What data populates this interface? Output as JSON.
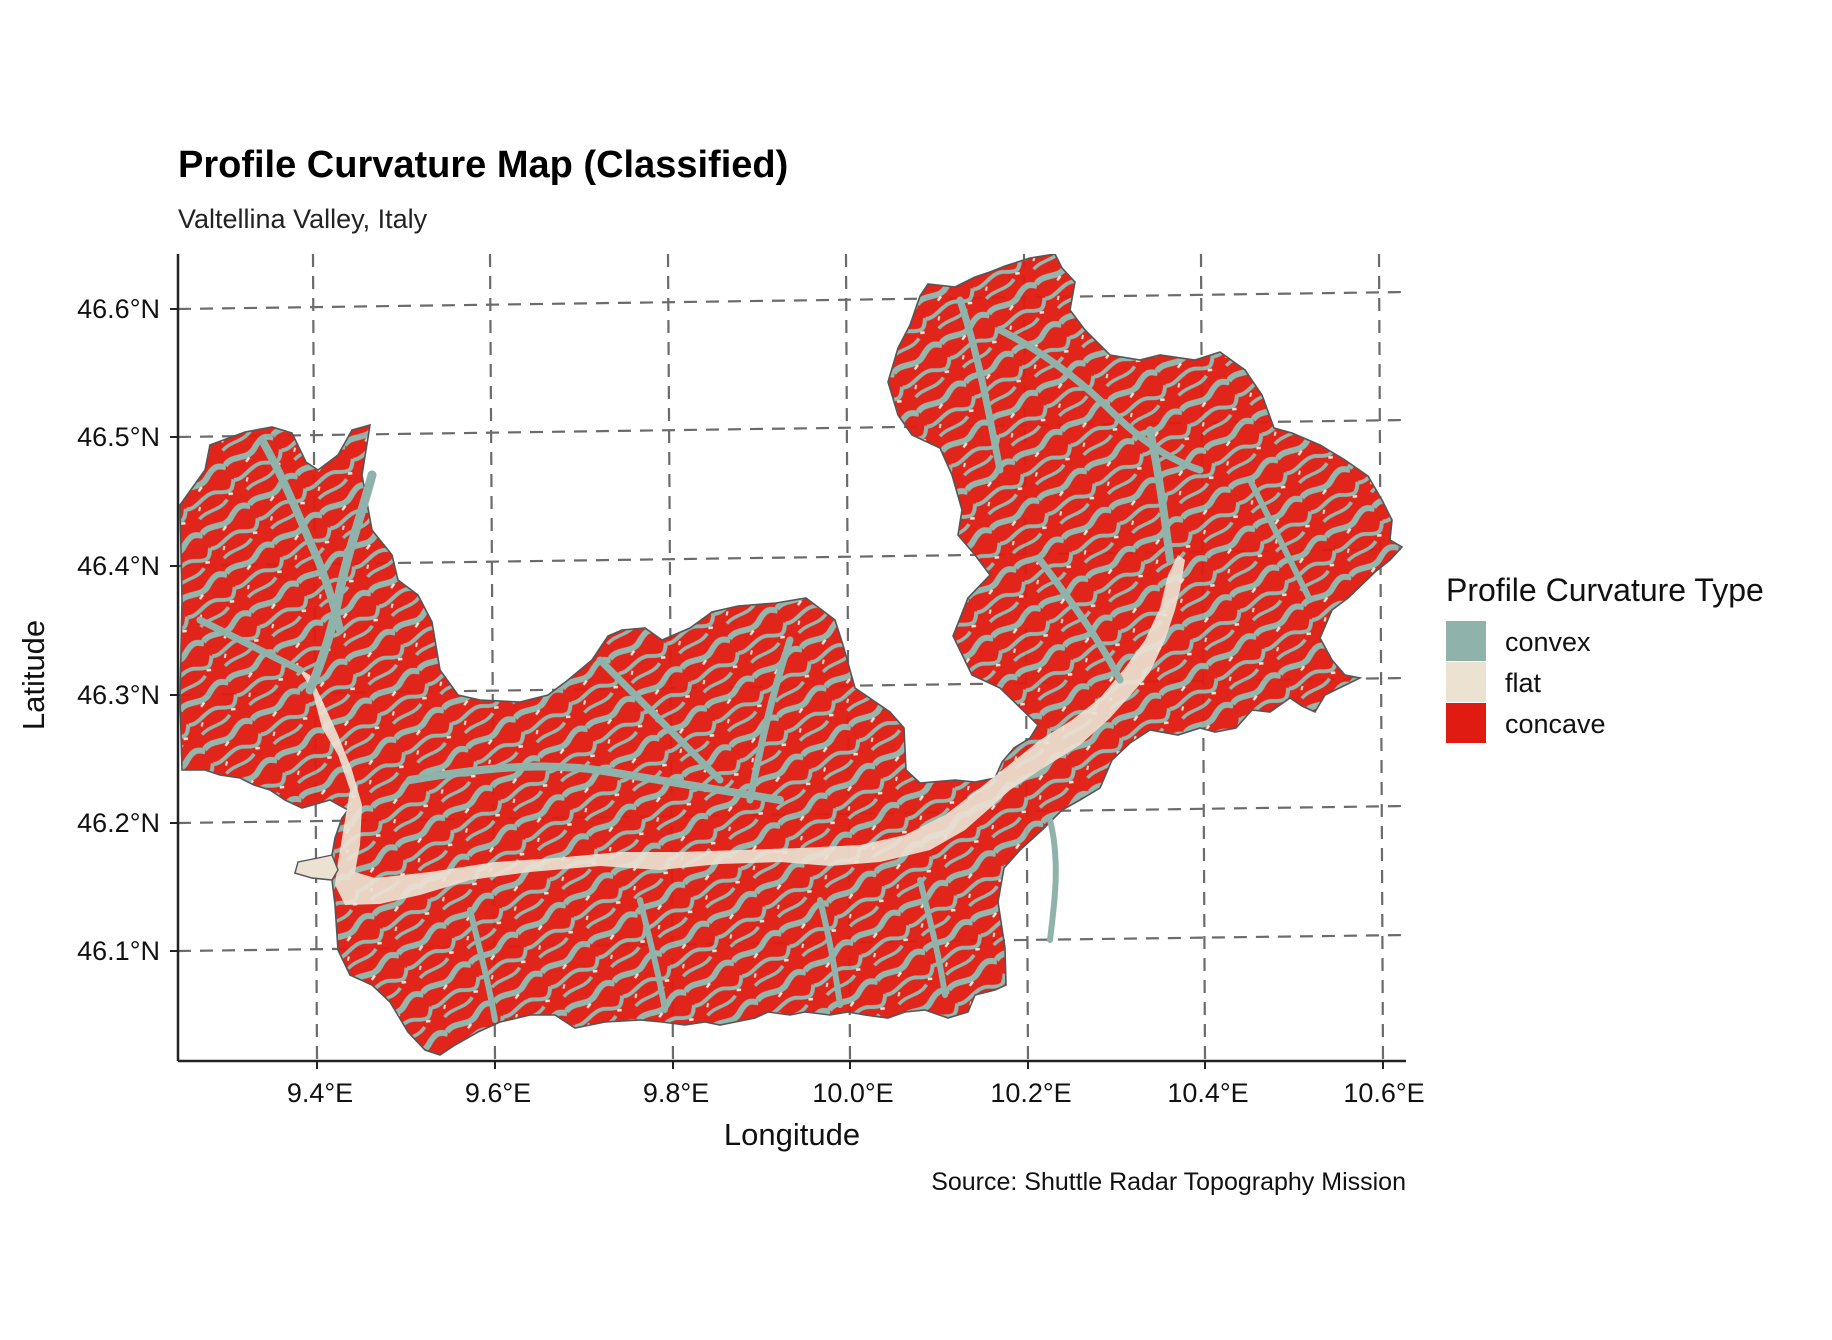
{
  "title": "Profile Curvature Map (Classified)",
  "subtitle": "Valtellina Valley, Italy",
  "caption": "Source: Shuttle Radar Topography Mission",
  "axes": {
    "xlabel": "Longitude",
    "ylabel": "Latitude",
    "lon_range": [
      9.25,
      10.62
    ],
    "lat_range": [
      46.01,
      46.64
    ],
    "x_ticks": [
      "9.4°E",
      "9.6°E",
      "9.8°E",
      "10.0°E",
      "10.2°E",
      "10.4°E",
      "10.6°E"
    ],
    "y_ticks": [
      "46.1°N",
      "46.2°N",
      "46.3°N",
      "46.4°N",
      "46.5°N",
      "46.6°N"
    ],
    "grid": true,
    "grid_style": "dashed"
  },
  "legend": {
    "title": "Profile Curvature Type",
    "placement": "right",
    "items": [
      {
        "label": "convex",
        "color": "#8fb3aa"
      },
      {
        "label": "flat",
        "color": "#ebe2d2"
      },
      {
        "label": "concave",
        "color": "#e01c12"
      }
    ]
  },
  "colors": {
    "convex": "#8fb3aa",
    "flat": "#ebe2d2",
    "concave": "#e01c12",
    "outline": "#555555"
  }
}
